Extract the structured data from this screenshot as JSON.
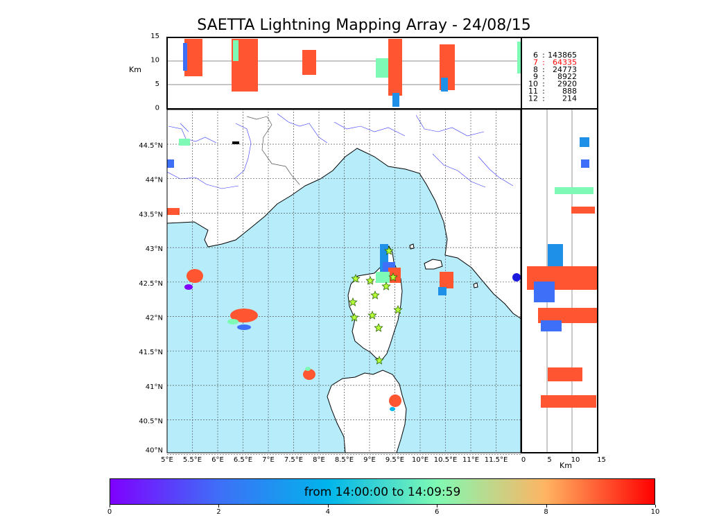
{
  "title": "SAETTA Lightning Mapping Array - 24/08/15",
  "altitude_label": "Km",
  "side_label": "Km",
  "altitude_ticks": [
    "15",
    "10",
    "5",
    "0"
  ],
  "side_ticks": [
    "0",
    "5",
    "10",
    "15"
  ],
  "lon_ticks": [
    "5°E",
    "5.5°E",
    "6°E",
    "6.5°E",
    "7°E",
    "7.5°E",
    "8°E",
    "8.5°E",
    "9°E",
    "9.5°E",
    "10°E",
    "10.5°E",
    "11°E",
    "11.5°E"
  ],
  "lat_ticks": [
    "44.5°N",
    "44°N",
    "43.5°N",
    "43°N",
    "42.5°N",
    "42°N",
    "41.5°N",
    "41°N",
    "40.5°N",
    "40°N"
  ],
  "station_counts": [
    {
      "stations": "6",
      "count": "143865",
      "highlight": false
    },
    {
      "stations": "7",
      "count": "64335",
      "highlight": true
    },
    {
      "stations": "8",
      "count": "24773",
      "highlight": false
    },
    {
      "stations": "9",
      "count": "8922",
      "highlight": false
    },
    {
      "stations": "10",
      "count": "2920",
      "highlight": false
    },
    {
      "stations": "11",
      "count": "888",
      "highlight": false
    },
    {
      "stations": "12",
      "count": "214",
      "highlight": false
    }
  ],
  "colorbar": {
    "label": "from 14:00:00 to 14:09:59",
    "ticks": [
      "0",
      "2",
      "4",
      "6",
      "8",
      "10"
    ],
    "colors": [
      "#7f00ff",
      "#3e6ff7",
      "#00b5eb",
      "#7ffab4",
      "#ffb462",
      "#ff0000"
    ]
  },
  "colors": {
    "sea": "#b7ecfb",
    "land": "#ffffff",
    "rivers": "#3333ff",
    "lightning_main": "#ff5530"
  }
}
